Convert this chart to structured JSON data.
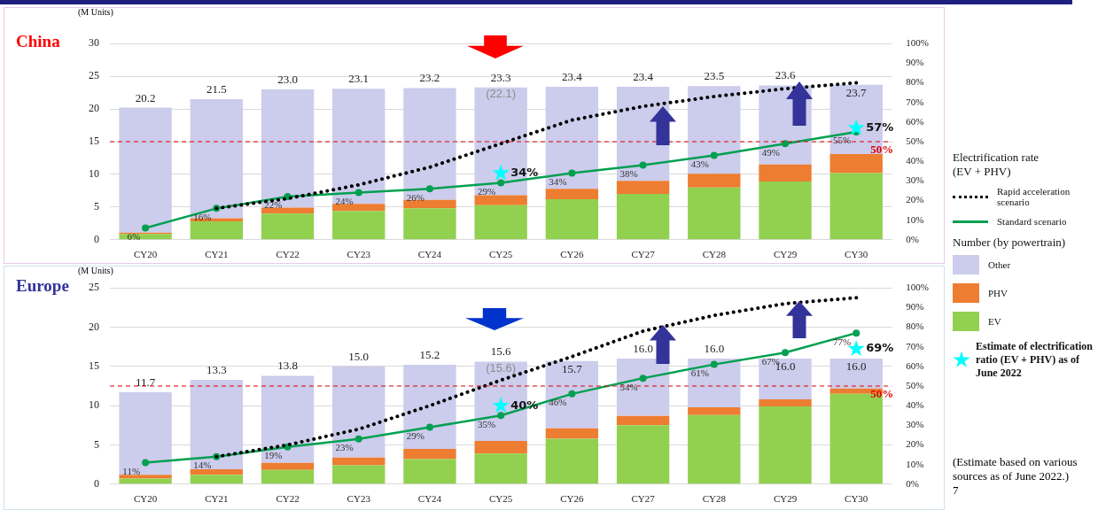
{
  "chart_data": [
    {
      "type": "bar",
      "title": "China",
      "ylabel": "(M Units)",
      "stacked": true,
      "grid": "y",
      "legend": "right",
      "legend_title": "Electrification rate (EV + PHV)",
      "categories": [
        "CY20",
        "CY21",
        "CY22",
        "CY23",
        "CY24",
        "CY25",
        "CY26",
        "CY27",
        "CY28",
        "CY29",
        "CY30"
      ],
      "ylim": [
        0,
        30
      ],
      "yticks": [
        0,
        5,
        10,
        15,
        20,
        25,
        30
      ],
      "y2lim": [
        0,
        100
      ],
      "y2ticks": [
        {
          "value": 0,
          "label": "0%"
        },
        {
          "value": 10,
          "label": "10%"
        },
        {
          "value": 20,
          "label": "20%"
        },
        {
          "value": 30,
          "label": "30%"
        },
        {
          "value": 40,
          "label": "40%"
        },
        {
          "value": 50,
          "label": "50%"
        },
        {
          "value": 60,
          "label": "60%"
        },
        {
          "value": 70,
          "label": "70%"
        },
        {
          "value": 80,
          "label": "80%"
        },
        {
          "value": 90,
          "label": "90%"
        },
        {
          "value": 100,
          "label": "100%"
        }
      ],
      "series": [
        {
          "name": "EV",
          "color": "#92d050",
          "values": [
            0.9,
            2.8,
            4.0,
            4.4,
            4.8,
            5.3,
            6.2,
            7.0,
            8.0,
            8.9,
            10.2
          ]
        },
        {
          "name": "PHV",
          "color": "#ed7d31",
          "values": [
            0.2,
            0.5,
            0.9,
            1.1,
            1.3,
            1.5,
            1.6,
            2.0,
            2.1,
            2.6,
            2.9
          ]
        },
        {
          "name": "Other",
          "color": "#ccccec",
          "values": [
            19.1,
            18.2,
            18.1,
            17.6,
            17.1,
            16.5,
            15.6,
            14.4,
            13.4,
            12.1,
            10.6
          ]
        },
        {
          "name": "Rapid acceleration scenario",
          "type": "line",
          "axis": "y2",
          "color": "#000000",
          "line_style": "dotted",
          "marker": "none",
          "values": [
            null,
            16,
            21,
            28,
            37,
            49,
            61,
            68,
            73,
            77,
            80
          ]
        },
        {
          "name": "Standard scenario",
          "type": "line",
          "axis": "y2",
          "color": "#00a050",
          "line_style": "solid",
          "marker": "circle",
          "values": [
            6,
            16,
            22,
            24,
            26,
            29,
            34,
            38,
            43,
            49,
            55
          ],
          "value_labels": [
            "6%",
            "16%",
            "22%",
            "24%",
            "26%",
            "29%",
            "34%",
            "38%",
            "43%",
            "49%",
            "55%"
          ]
        },
        {
          "name": "Estimate of electrification ratio (EV + PHV) as of June 2022",
          "type": "scatter",
          "axis": "y2",
          "color": "#00ffff",
          "marker": "star",
          "x": [
            "CY25",
            "CY30"
          ],
          "values": [
            34,
            57
          ],
          "value_labels": [
            "34%",
            "57%"
          ]
        }
      ],
      "totals": [
        "20.2",
        "21.5",
        "23.0",
        "23.1",
        "23.2",
        "23.3",
        "23.4",
        "23.4",
        "23.5",
        "23.6",
        "23.7"
      ],
      "ref_lines": [
        {
          "axis": "y2",
          "value": 50,
          "label": "50%",
          "color": "#e00000",
          "line_style": "dashed"
        }
      ],
      "annotations": [
        "Number (by powertrain)",
        {
          "text": "(22.1)",
          "x": "CY25",
          "y": 23.3
        }
      ]
    },
    {
      "type": "bar",
      "title": "Europe",
      "ylabel": "(M Units)",
      "stacked": true,
      "grid": "y",
      "categories": [
        "CY20",
        "CY21",
        "CY22",
        "CY23",
        "CY24",
        "CY25",
        "CY26",
        "CY27",
        "CY28",
        "CY29",
        "CY30"
      ],
      "ylim": [
        0,
        25
      ],
      "yticks": [
        0,
        5,
        10,
        15,
        20,
        25
      ],
      "y2lim": [
        0,
        100
      ],
      "y2ticks": [
        {
          "value": 0,
          "label": "0%"
        },
        {
          "value": 10,
          "label": "10%"
        },
        {
          "value": 20,
          "label": "20%"
        },
        {
          "value": 30,
          "label": "30%"
        },
        {
          "value": 40,
          "label": "40%"
        },
        {
          "value": 50,
          "label": "50%"
        },
        {
          "value": 60,
          "label": "60%"
        },
        {
          "value": 70,
          "label": "70%"
        },
        {
          "value": 80,
          "label": "80%"
        },
        {
          "value": 90,
          "label": "90%"
        },
        {
          "value": 100,
          "label": "100%"
        }
      ],
      "series": [
        {
          "color": "#92d050",
          "values": [
            0.7,
            1.2,
            1.8,
            2.4,
            3.2,
            3.9,
            5.8,
            7.5,
            8.8,
            9.9,
            11.5
          ]
        },
        {
          "color": "#ed7d31",
          "values": [
            0.5,
            0.7,
            0.9,
            1.0,
            1.3,
            1.6,
            1.3,
            1.2,
            1.0,
            0.9,
            0.7
          ]
        },
        {
          "color": "#ccccec",
          "values": [
            10.5,
            11.4,
            11.1,
            11.6,
            10.7,
            10.1,
            8.6,
            7.3,
            6.2,
            5.2,
            3.8
          ]
        },
        {
          "type": "line",
          "axis": "y2",
          "color": "#000000",
          "line_style": "dotted",
          "marker": "none",
          "values": [
            null,
            14,
            20,
            28,
            40,
            53,
            65,
            78,
            86,
            92,
            95
          ]
        },
        {
          "type": "line",
          "axis": "y2",
          "color": "#00a050",
          "line_style": "solid",
          "marker": "circle",
          "values": [
            11,
            14,
            19,
            23,
            29,
            35,
            46,
            54,
            61,
            67,
            77
          ],
          "value_labels": [
            "11%",
            "14%",
            "19%",
            "23%",
            "29%",
            "35%",
            "46%",
            "54%",
            "61%",
            "67%",
            "77%"
          ]
        },
        {
          "type": "scatter",
          "axis": "y2",
          "color": "#00ffff",
          "marker": "star",
          "x": [
            "CY25",
            "CY30"
          ],
          "values": [
            40,
            69
          ],
          "value_labels": [
            "40%",
            "69%"
          ]
        }
      ],
      "totals": [
        "11.7",
        "13.3",
        "13.8",
        "15.0",
        "15.2",
        "15.6",
        "15.7",
        "16.0",
        "16.0",
        "16.0",
        "16.0"
      ],
      "ref_lines": [
        {
          "axis": "y2",
          "value": 50,
          "label": "50%",
          "color": "#e00000",
          "line_style": "dashed"
        }
      ],
      "annotations": [
        {
          "text": "(15.6)",
          "x": "CY25",
          "y": 15.6
        },
        "(Estimate based on various sources as of June 2022.)",
        "7"
      ]
    }
  ]
}
